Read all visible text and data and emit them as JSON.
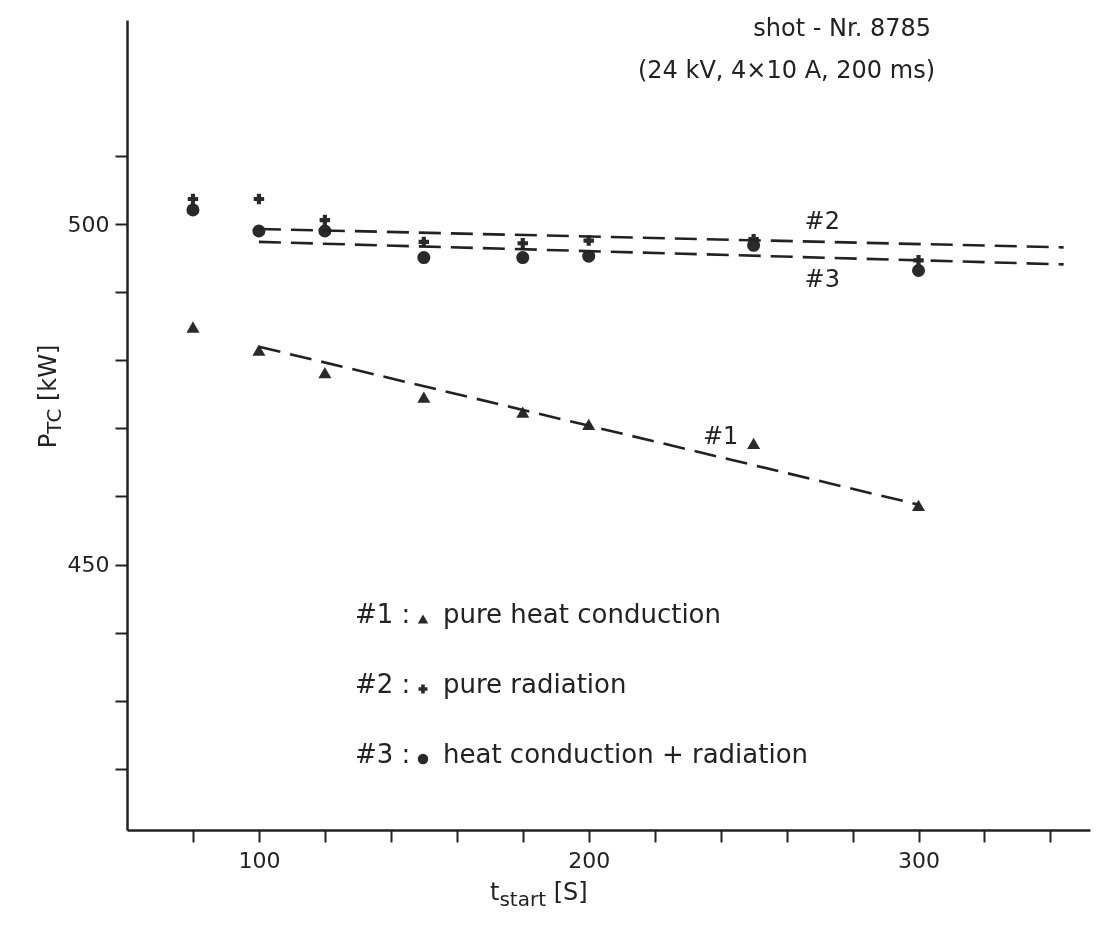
{
  "chart_data": {
    "type": "scatter",
    "title": "shot - Nr. 8785",
    "subtitle": "(24 kV, 4×10 A, 200 ms)",
    "xlabel": "t$_{start}$  [S]",
    "ylabel": "P$_{TC}$ [kW]",
    "xlim": [
      60,
      352
    ],
    "ylim": [
      411,
      530
    ],
    "xticks": [
      {
        "value": 80,
        "label": null
      },
      100,
      {
        "value": 120,
        "label": null
      },
      {
        "value": 140,
        "label": null
      },
      {
        "value": 160,
        "label": null
      },
      {
        "value": 180,
        "label": null
      },
      200,
      {
        "value": 220,
        "label": null
      },
      {
        "value": 240,
        "label": null
      },
      {
        "value": 260,
        "label": null
      },
      {
        "value": 280,
        "label": null
      },
      300,
      {
        "value": 320,
        "label": null
      },
      {
        "value": 340,
        "label": null
      }
    ],
    "yticks": [
      {
        "value": 420,
        "label": null
      },
      {
        "value": 430,
        "label": null
      },
      {
        "value": 440,
        "label": null
      },
      450,
      {
        "value": 460,
        "label": null
      },
      {
        "value": 470,
        "label": null
      },
      {
        "value": 480,
        "label": null
      },
      {
        "value": 490,
        "label": null
      },
      500,
      {
        "value": 510,
        "label": null
      }
    ],
    "grid": false,
    "legend": "bottom",
    "annotations": [
      "#1 :",
      "#2 :",
      "#3 :"
    ],
    "series": [
      {
        "name": "pure heat conduction",
        "color": "#2a2a2a",
        "marker": "triangle",
        "x": [
          80,
          100,
          120,
          150,
          180,
          200,
          250,
          300
        ],
        "values": [
          484.9,
          481.5,
          478.2,
          474.6,
          472.4,
          470.6,
          467.8,
          458.7
        ]
      },
      {
        "name": "pure radiation",
        "color": "#2a2a2a",
        "marker": "cross",
        "x": [
          80,
          100,
          120,
          150,
          180,
          200,
          250,
          300
        ],
        "values": [
          503.7,
          503.7,
          500.6,
          497.4,
          497.2,
          497.6,
          497.8,
          494.7
        ]
      },
      {
        "name": "heat conduction + radiation",
        "color": "#2a2a2a",
        "marker": "circle",
        "x": [
          80,
          100,
          120,
          150,
          180,
          200,
          250,
          300
        ],
        "values": [
          502.1,
          499,
          499,
          495.1,
          495.1,
          495.3,
          496.9,
          493.2
        ]
      },
      {
        "name": "#1",
        "type": "line",
        "color": "#222222",
        "line_style": "dashed",
        "x": [
          100,
          300
        ],
        "values": [
          482,
          458.8
        ]
      },
      {
        "name": "#2",
        "type": "line",
        "color": "#222222",
        "line_style": "dashed",
        "x": [
          100,
          344
        ],
        "values": [
          499.3,
          496.6
        ]
      },
      {
        "name": "#3",
        "type": "line",
        "color": "#222222",
        "line_style": "dashed",
        "x": [
          100,
          344
        ],
        "values": [
          497.4,
          494.1
        ]
      }
    ]
  }
}
